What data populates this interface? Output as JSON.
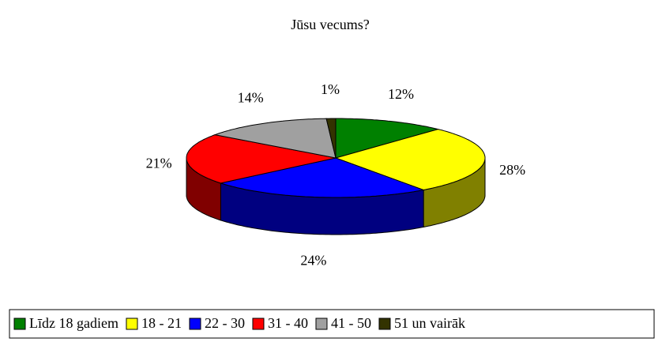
{
  "chart_data": {
    "type": "pie3d",
    "title": "Jūsu vecums?",
    "categories": [
      "Līdz 18 gadiem",
      "18 - 21",
      "22 - 30",
      "31 - 40",
      "41 - 50",
      "51 un vairāk"
    ],
    "values": [
      12,
      28,
      24,
      21,
      14,
      1
    ],
    "value_labels": [
      "12%",
      "28%",
      "24%",
      "21%",
      "14%",
      "1%"
    ],
    "colors": [
      "#008000",
      "#ffff00",
      "#0000ff",
      "#ff0000",
      "#a0a0a0",
      "#333300"
    ],
    "legend": "bottom"
  }
}
